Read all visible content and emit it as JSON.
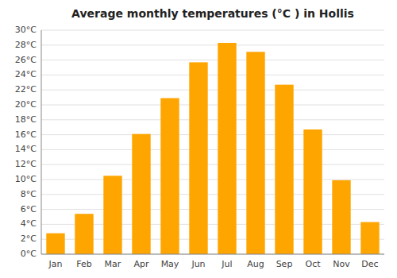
{
  "chart_data": {
    "type": "bar",
    "title": "Average monthly temperatures (°C ) in Hollis",
    "categories": [
      "Jan",
      "Feb",
      "Mar",
      "Apr",
      "May",
      "Jun",
      "Jul",
      "Aug",
      "Sep",
      "Oct",
      "Nov",
      "Dec"
    ],
    "values": [
      2.8,
      5.4,
      10.5,
      16.1,
      20.9,
      25.7,
      28.3,
      27.1,
      22.7,
      16.7,
      9.9,
      4.3
    ],
    "color": "#FFA500",
    "ylim": [
      0,
      30
    ],
    "yticks": [
      {
        "value": 0,
        "label": "0°C"
      },
      {
        "value": 2,
        "label": "2°C"
      },
      {
        "value": 4,
        "label": "4°C"
      },
      {
        "value": 6,
        "label": "6°C"
      },
      {
        "value": 8,
        "label": "8°C"
      },
      {
        "value": 10,
        "label": "10°C"
      },
      {
        "value": 12,
        "label": "12°C"
      },
      {
        "value": 14,
        "label": "14°C"
      },
      {
        "value": 16,
        "label": "16°C"
      },
      {
        "value": 18,
        "label": "18°C"
      },
      {
        "value": 20,
        "label": "20°C"
      },
      {
        "value": 22,
        "label": "22°C"
      },
      {
        "value": 24,
        "label": "24°C"
      },
      {
        "value": 26,
        "label": "26°C"
      },
      {
        "value": 28,
        "label": "28°C"
      },
      {
        "value": 30,
        "label": "30°C"
      }
    ],
    "grid": true
  }
}
